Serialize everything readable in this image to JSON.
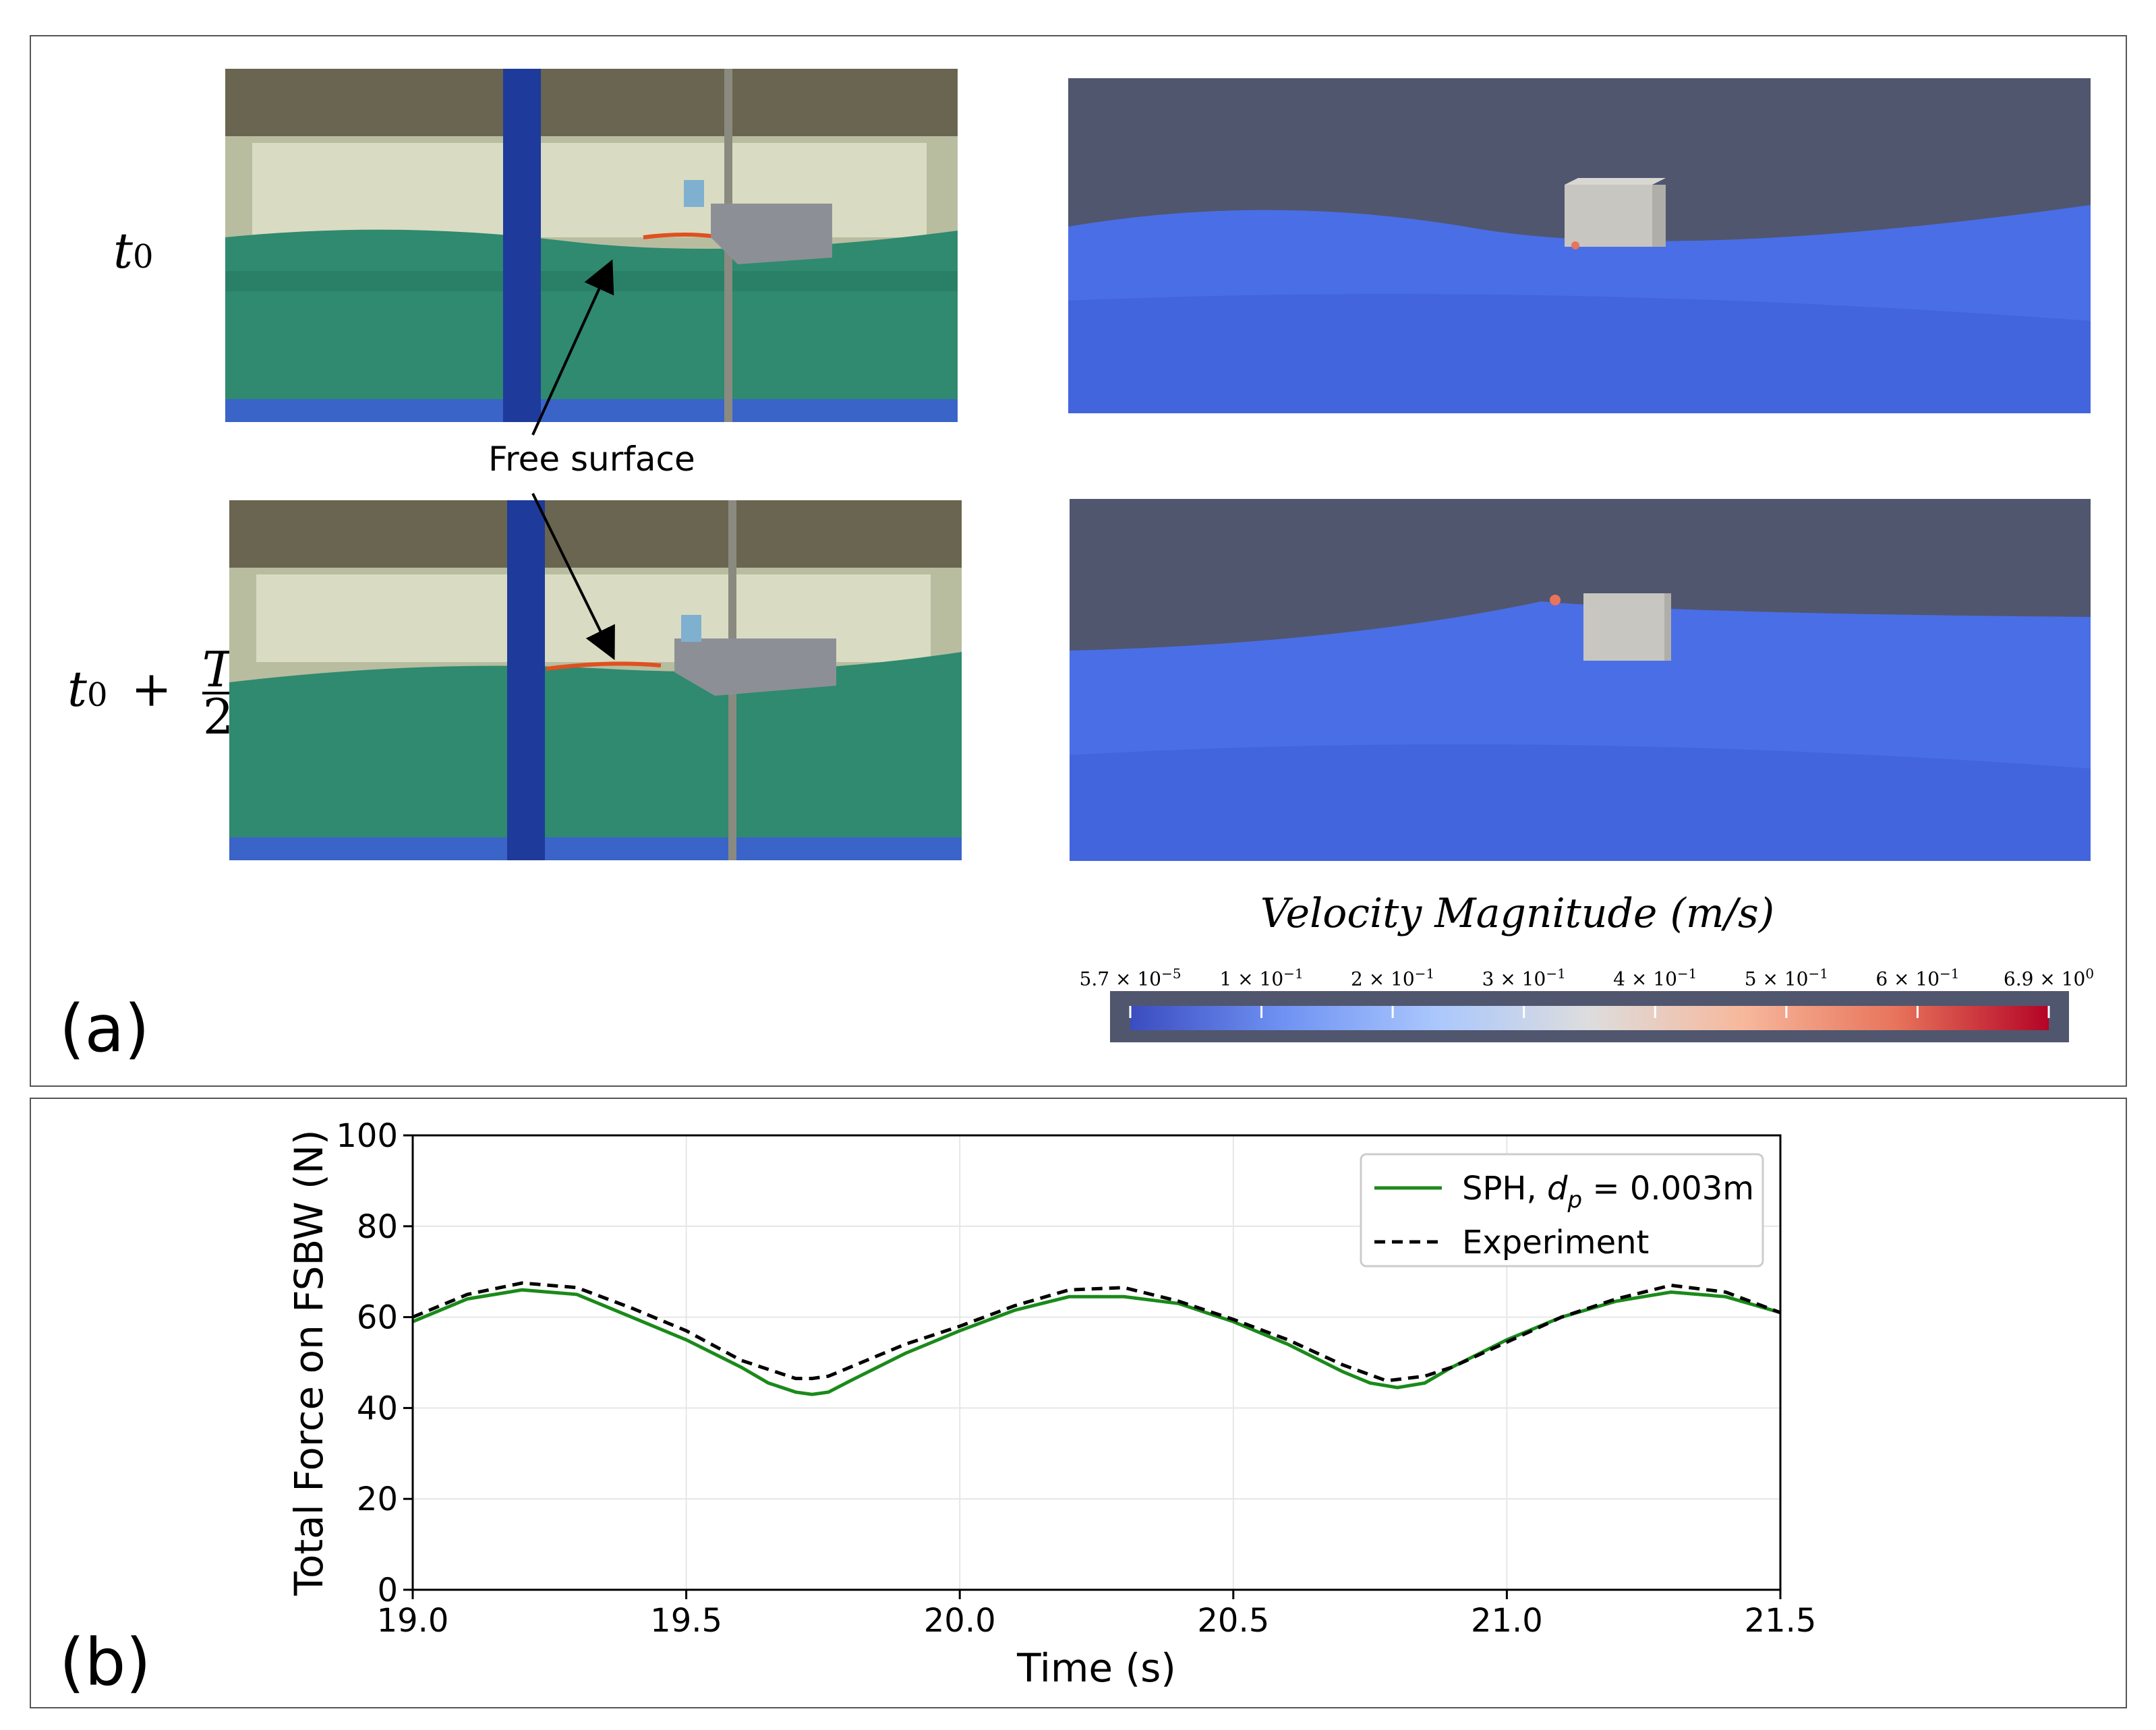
{
  "panel_a": {
    "label": "(a)",
    "rows": [
      {
        "label_base": "t",
        "label_sub": "0"
      },
      {
        "label_base": "t",
        "label_sub": "0",
        "label_op": "+",
        "frac_num": "T",
        "frac_den": "2"
      }
    ],
    "annotation": "Free surface",
    "colorbar": {
      "title": "Velocity Magnitude (m/s)",
      "ticks": [
        {
          "mant": "5.7 × 10",
          "exp": "−5"
        },
        {
          "mant": "1 × 10",
          "exp": "−1"
        },
        {
          "mant": "2 × 10",
          "exp": "−1"
        },
        {
          "mant": "3 × 10",
          "exp": "−1"
        },
        {
          "mant": "4 × 10",
          "exp": "−1"
        },
        {
          "mant": "5 × 10",
          "exp": "−1"
        },
        {
          "mant": "6 × 10",
          "exp": "−1"
        },
        {
          "mant": "6.9 × 10",
          "exp": "0"
        }
      ],
      "colors": [
        "#3b4cc0",
        "#6f92f3",
        "#aac7fd",
        "#dddddd",
        "#f7b89c",
        "#e7745b",
        "#b40426"
      ]
    }
  },
  "panel_b": {
    "label": "(b)"
  },
  "chart_data": {
    "type": "line",
    "xlabel": "Time (s)",
    "ylabel": "Total Force on FSBW (N)",
    "xlim": [
      19.0,
      21.5
    ],
    "ylim": [
      0,
      100
    ],
    "xticks": [
      "19.0",
      "19.5",
      "20.0",
      "20.5",
      "21.0",
      "21.5"
    ],
    "yticks": [
      "0",
      "20",
      "40",
      "60",
      "80",
      "100"
    ],
    "grid": true,
    "legend_position": "top-right",
    "series": [
      {
        "name_prefix": "SPH, ",
        "name_math": "d",
        "name_math_sub": "p",
        "name_suffix": " = 0.003m",
        "color": "#1a8a1a",
        "style": "solid",
        "x": [
          19.0,
          19.1,
          19.2,
          19.3,
          19.4,
          19.5,
          19.6,
          19.65,
          19.7,
          19.73,
          19.76,
          19.8,
          19.9,
          20.0,
          20.1,
          20.2,
          20.3,
          20.4,
          20.5,
          20.6,
          20.7,
          20.75,
          20.8,
          20.85,
          20.9,
          21.0,
          21.1,
          21.2,
          21.3,
          21.4,
          21.5
        ],
        "y": [
          59,
          64,
          66,
          65,
          60,
          55,
          49,
          45.5,
          43.5,
          43,
          43.5,
          46,
          52,
          57,
          61.5,
          64.5,
          64.5,
          63,
          59,
          54,
          48,
          45.5,
          44.5,
          45.5,
          49,
          55,
          60,
          63.5,
          65.5,
          64.5,
          61
        ]
      },
      {
        "name_prefix": "Experiment",
        "name_math": "",
        "name_math_sub": "",
        "name_suffix": "",
        "color": "#000000",
        "style": "dashed",
        "x": [
          19.0,
          19.1,
          19.2,
          19.3,
          19.4,
          19.5,
          19.6,
          19.7,
          19.73,
          19.76,
          19.8,
          19.9,
          20.0,
          20.1,
          20.2,
          20.3,
          20.4,
          20.5,
          20.6,
          20.7,
          20.78,
          20.85,
          20.9,
          21.0,
          21.1,
          21.2,
          21.3,
          21.4,
          21.5
        ],
        "y": [
          60,
          65,
          67.5,
          66.5,
          62,
          57,
          50.5,
          46.5,
          46.5,
          47,
          49,
          54,
          58,
          62.5,
          66,
          66.5,
          63.5,
          59.5,
          55,
          49.5,
          46,
          47,
          49,
          54.5,
          60,
          64,
          67,
          65.5,
          61
        ]
      }
    ]
  }
}
